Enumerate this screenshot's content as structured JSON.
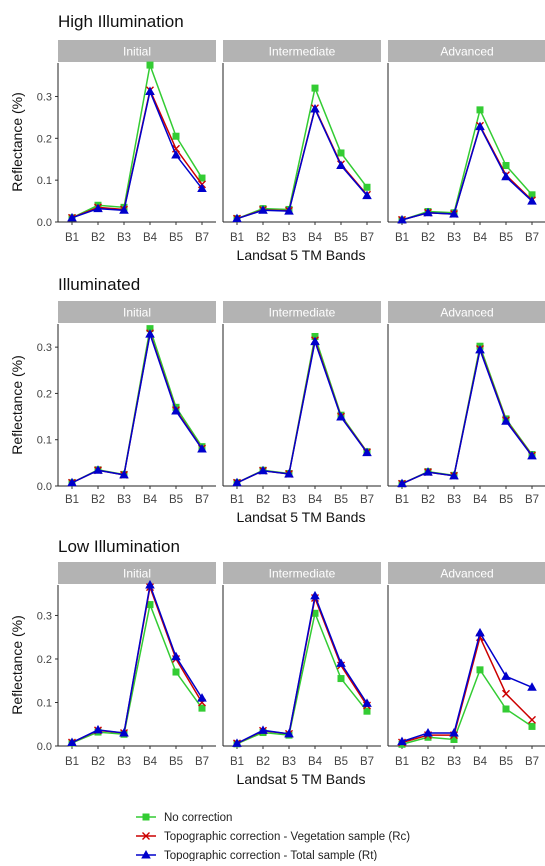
{
  "legend": {
    "items": [
      {
        "label": "No correction",
        "color": "#33cc33",
        "marker": "square"
      },
      {
        "label": "Topographic correction - Vegetation sample (Rc)",
        "color": "#cc0000",
        "marker": "cross"
      },
      {
        "label": "Topographic correction - Total sample (Rt)",
        "color": "#0000cc",
        "marker": "triangle"
      }
    ]
  },
  "chart_data": [
    {
      "type": "line",
      "title": "High Illumination",
      "xlabel": "Landsat 5 TM Bands",
      "ylabel": "Reflectance (%)",
      "categories": [
        "B1",
        "B2",
        "B3",
        "B4",
        "B5",
        "B7"
      ],
      "ylim": [
        0,
        0.38
      ],
      "yticks": [
        0.0,
        0.1,
        0.2,
        0.3
      ],
      "ytick_labels": [
        "0.0",
        "0.1",
        "0.2",
        "0.3"
      ],
      "grid": false,
      "facets": [
        {
          "name": "Initial",
          "series": [
            {
              "values": [
                0.01,
                0.04,
                0.035,
                0.375,
                0.205,
                0.105
              ]
            },
            {
              "values": [
                0.01,
                0.035,
                0.03,
                0.315,
                0.175,
                0.09
              ]
            },
            {
              "values": [
                0.01,
                0.032,
                0.028,
                0.312,
                0.16,
                0.08
              ]
            }
          ]
        },
        {
          "name": "Intermediate",
          "series": [
            {
              "values": [
                0.008,
                0.032,
                0.03,
                0.32,
                0.165,
                0.083
              ]
            },
            {
              "values": [
                0.008,
                0.029,
                0.027,
                0.272,
                0.138,
                0.065
              ]
            },
            {
              "values": [
                0.008,
                0.028,
                0.026,
                0.27,
                0.135,
                0.063
              ]
            }
          ]
        },
        {
          "name": "Advanced",
          "series": [
            {
              "values": [
                0.005,
                0.025,
                0.022,
                0.268,
                0.135,
                0.065
              ]
            },
            {
              "values": [
                0.005,
                0.022,
                0.019,
                0.23,
                0.112,
                0.052
              ]
            },
            {
              "values": [
                0.005,
                0.022,
                0.019,
                0.228,
                0.108,
                0.05
              ]
            }
          ]
        }
      ]
    },
    {
      "type": "line",
      "title": "Illuminated",
      "xlabel": "Landsat 5 TM Bands",
      "ylabel": "Reflectance (%)",
      "categories": [
        "B1",
        "B2",
        "B3",
        "B4",
        "B5",
        "B7"
      ],
      "ylim": [
        0,
        0.35
      ],
      "yticks": [
        0.0,
        0.1,
        0.2,
        0.3
      ],
      "ytick_labels": [
        "0.0",
        "0.1",
        "0.2",
        "0.3"
      ],
      "grid": false,
      "facets": [
        {
          "name": "Initial",
          "series": [
            {
              "values": [
                0.007,
                0.035,
                0.025,
                0.34,
                0.17,
                0.085
              ]
            },
            {
              "values": [
                0.007,
                0.034,
                0.024,
                0.33,
                0.164,
                0.081
              ]
            },
            {
              "values": [
                0.007,
                0.034,
                0.024,
                0.328,
                0.162,
                0.08
              ]
            }
          ]
        },
        {
          "name": "Intermediate",
          "series": [
            {
              "values": [
                0.007,
                0.034,
                0.027,
                0.323,
                0.153,
                0.074
              ]
            },
            {
              "values": [
                0.007,
                0.033,
                0.026,
                0.315,
                0.15,
                0.073
              ]
            },
            {
              "values": [
                0.007,
                0.033,
                0.026,
                0.312,
                0.149,
                0.072
              ]
            }
          ]
        },
        {
          "name": "Advanced",
          "series": [
            {
              "values": [
                0.005,
                0.031,
                0.023,
                0.302,
                0.145,
                0.068
              ]
            },
            {
              "values": [
                0.005,
                0.03,
                0.022,
                0.296,
                0.142,
                0.066
              ]
            },
            {
              "values": [
                0.005,
                0.03,
                0.022,
                0.294,
                0.14,
                0.065
              ]
            }
          ]
        }
      ]
    },
    {
      "type": "line",
      "title": "Low Illumination",
      "xlabel": "Landsat 5 TM Bands",
      "ylabel": "Reflectance (%)",
      "categories": [
        "B1",
        "B2",
        "B3",
        "B4",
        "B5",
        "B7"
      ],
      "ylim": [
        0,
        0.37
      ],
      "yticks": [
        0.0,
        0.1,
        0.2,
        0.3
      ],
      "ytick_labels": [
        "0.0",
        "0.1",
        "0.2",
        "0.3"
      ],
      "grid": false,
      "facets": [
        {
          "name": "Initial",
          "series": [
            {
              "values": [
                0.007,
                0.032,
                0.027,
                0.325,
                0.17,
                0.087
              ]
            },
            {
              "values": [
                0.008,
                0.036,
                0.03,
                0.365,
                0.2,
                0.1
              ]
            },
            {
              "values": [
                0.008,
                0.037,
                0.03,
                0.37,
                0.205,
                0.11
              ]
            }
          ]
        },
        {
          "name": "Intermediate",
          "series": [
            {
              "values": [
                0.005,
                0.031,
                0.025,
                0.305,
                0.155,
                0.08
              ]
            },
            {
              "values": [
                0.006,
                0.035,
                0.028,
                0.34,
                0.185,
                0.093
              ]
            },
            {
              "values": [
                0.006,
                0.036,
                0.028,
                0.345,
                0.19,
                0.098
              ]
            }
          ]
        },
        {
          "name": "Advanced",
          "series": [
            {
              "values": [
                0.004,
                0.02,
                0.015,
                0.175,
                0.085,
                0.045
              ]
            },
            {
              "values": [
                0.008,
                0.025,
                0.025,
                0.25,
                0.12,
                0.06
              ]
            },
            {
              "values": [
                0.01,
                0.03,
                0.03,
                0.26,
                0.16,
                0.135
              ]
            }
          ]
        }
      ]
    }
  ]
}
